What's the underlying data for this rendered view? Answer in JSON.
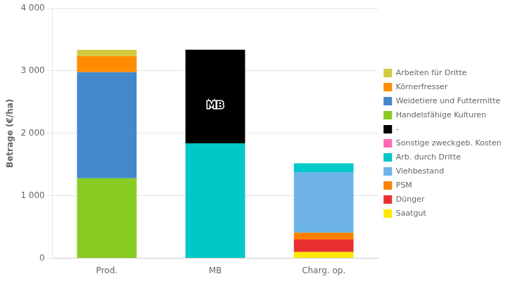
{
  "chart_data": {
    "type": "bar",
    "categories": [
      "Prod.",
      "MB",
      "Charg. op."
    ],
    "series": [
      {
        "name": "Saatgut",
        "color": "#FFE800",
        "values": [
          0,
          0,
          100
        ]
      },
      {
        "name": "Dünger",
        "color": "#E83030",
        "values": [
          0,
          0,
          200
        ]
      },
      {
        "name": "PSM",
        "color": "#FF8000",
        "values": [
          0,
          0,
          110
        ]
      },
      {
        "name": "Viehbestand",
        "color": "#6EB4E8",
        "values": [
          0,
          0,
          970
        ]
      },
      {
        "name": "Arb. durch Dritte",
        "color": "#00C8C8",
        "values": [
          0,
          1840,
          140
        ]
      },
      {
        "name": "Sonstige zweckgeb. Kosten",
        "color": "#FF69B4",
        "values": [
          0,
          0,
          0
        ]
      },
      {
        "name": "-",
        "color": "#000000",
        "values": [
          0,
          1500,
          0
        ]
      },
      {
        "name": "Handelsfähige Kulturen",
        "color": "#88CC22",
        "values": [
          1280,
          0,
          0
        ]
      },
      {
        "name": "Weidetiere und Futtermitte",
        "color": "#4488CC",
        "values": [
          1700,
          0,
          0
        ]
      },
      {
        "name": "Körnerfresser",
        "color": "#FF8C00",
        "values": [
          255,
          0,
          0
        ]
      },
      {
        "name": "Arbeiten für Dritte",
        "color": "#D4C840",
        "values": [
          100,
          0,
          0
        ]
      }
    ],
    "stacked": true,
    "ylabel": "Betrage (€/ha)",
    "ylim": [
      0,
      4000
    ],
    "yticks": [
      0,
      {
        "value": 1000,
        "label": "1 000"
      },
      {
        "value": 2000,
        "label": "2 000"
      },
      {
        "value": 3000,
        "label": "3 000"
      },
      {
        "value": 4000,
        "label": "4 000"
      }
    ],
    "grid": true,
    "legend": "right",
    "annotations": [
      {
        "text": "MB",
        "x": "MB",
        "y": 2440
      }
    ]
  }
}
